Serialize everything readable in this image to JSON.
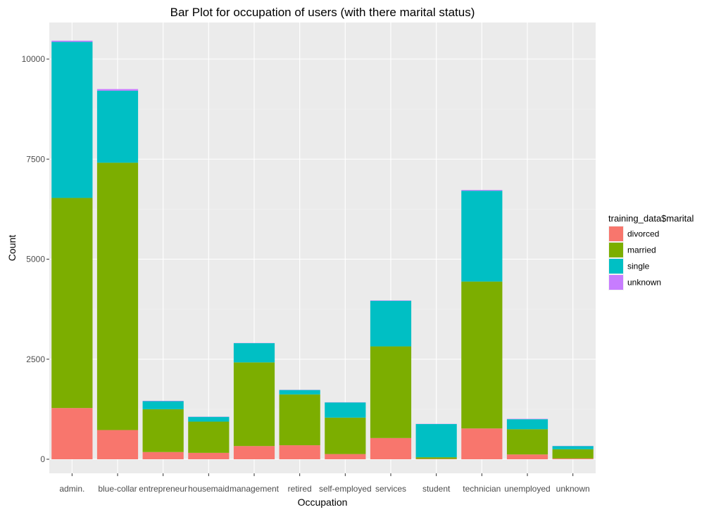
{
  "chart_data": {
    "type": "bar",
    "stacked": true,
    "title": "Bar Plot for occupation of users (with there marital status)",
    "xlabel": "Occupation",
    "ylabel": "Count",
    "ylim": [
      0,
      10800
    ],
    "yticks": [
      0,
      2500,
      5000,
      7500,
      10000
    ],
    "grid": true,
    "legend_position": "right",
    "legend_title": "training_data$marital",
    "categories": [
      "admin.",
      "blue-collar",
      "entrepreneur",
      "housemaid",
      "management",
      "retired",
      "self-employed",
      "services",
      "student",
      "technician",
      "unemployed",
      "unknown"
    ],
    "series": [
      {
        "name": "divorced",
        "color": "#F8766D",
        "values": [
          1280,
          730,
          180,
          160,
          330,
          350,
          130,
          530,
          10,
          770,
          120,
          20
        ]
      },
      {
        "name": "married",
        "color": "#7CAE00",
        "values": [
          5250,
          6680,
          1070,
          780,
          2090,
          1270,
          910,
          2290,
          40,
          3670,
          630,
          230
        ]
      },
      {
        "name": "single",
        "color": "#00BFC4",
        "values": [
          3900,
          1800,
          200,
          120,
          480,
          110,
          380,
          1140,
          830,
          2270,
          250,
          80
        ]
      },
      {
        "name": "unknown",
        "color": "#C77CFF",
        "values": [
          30,
          40,
          10,
          5,
          5,
          5,
          5,
          10,
          5,
          20,
          10,
          5
        ]
      }
    ]
  }
}
